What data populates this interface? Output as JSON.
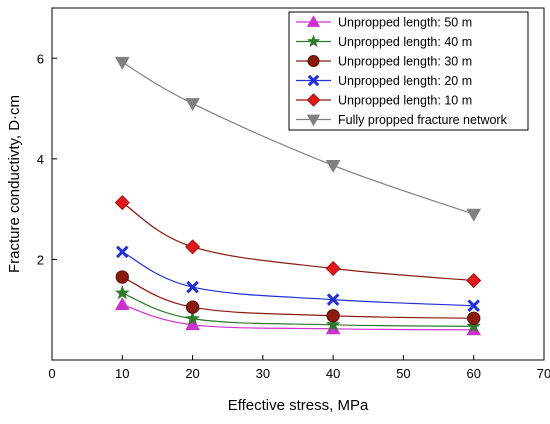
{
  "chart_data": {
    "type": "line",
    "title": "",
    "xlabel": "Effective stress, MPa",
    "ylabel": "Fracture conductivty, D·cm",
    "xlim": [
      0,
      70
    ],
    "ylim": [
      0,
      7
    ],
    "xticks": [
      0,
      10,
      20,
      30,
      40,
      50,
      60,
      70
    ],
    "yticks": [
      2,
      4,
      6
    ],
    "grid": false,
    "legend_position": "top-right",
    "x": [
      10,
      20,
      40,
      60
    ],
    "series": [
      {
        "name": "Unpropped length: 50 m",
        "values": [
          1.1,
          0.7,
          0.62,
          0.6
        ],
        "marker": "triangle-up",
        "marker_color": "#cc33cc",
        "line_color": "#cc33cc"
      },
      {
        "name": "Unpropped length: 40 m",
        "values": [
          1.33,
          0.82,
          0.7,
          0.67
        ],
        "marker": "star",
        "marker_color": "#2d7a2d",
        "line_color": "#2d7a2d"
      },
      {
        "name": "Unpropped length: 30 m",
        "values": [
          1.65,
          1.05,
          0.88,
          0.83
        ],
        "marker": "circle",
        "marker_color": "#8b1a10",
        "line_color": "#8b1a10"
      },
      {
        "name": "Unpropped length: 20 m",
        "values": [
          2.15,
          1.45,
          1.2,
          1.08
        ],
        "marker": "x",
        "marker_color": "#1f2ed6",
        "line_color": "#1f2ed6"
      },
      {
        "name": "Unpropped length: 10 m",
        "values": [
          3.13,
          2.25,
          1.82,
          1.58
        ],
        "marker": "diamond",
        "marker_color": "#e01a1a",
        "line_color": "#8b1a10"
      },
      {
        "name": "Fully propped fracture network",
        "values": [
          5.92,
          5.1,
          3.87,
          2.9
        ],
        "marker": "triangle-down",
        "marker_color": "#808080",
        "line_color": "#808080"
      }
    ]
  }
}
